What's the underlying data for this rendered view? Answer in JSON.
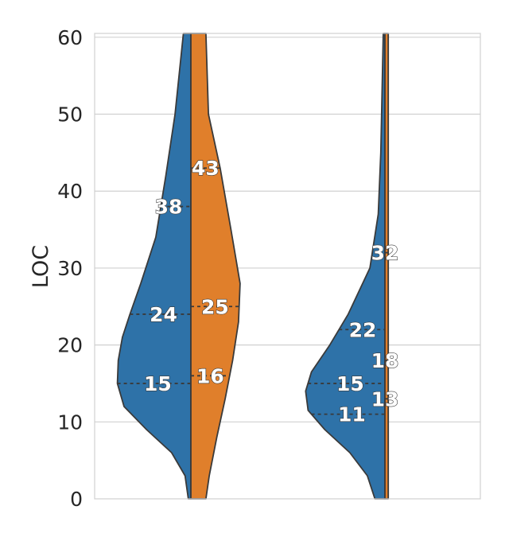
{
  "chart_data": {
    "type": "violin",
    "split": true,
    "title": "",
    "xlabel": "",
    "ylabel": "LOC",
    "ylim": [
      0,
      60.5
    ],
    "yticks": [
      0,
      10,
      20,
      30,
      40,
      50,
      60
    ],
    "grid": true,
    "colors": {
      "left": "#2e72a8",
      "right": "#e07f2b",
      "outline": "#3a3a3a",
      "grid": "#d0d0d0"
    },
    "groups": [
      {
        "left": {
          "quartiles": [
            15,
            24,
            38
          ],
          "labels": [
            "15",
            "24",
            "38"
          ],
          "shape": [
            [
              0,
              0.03
            ],
            [
              3,
              0.07
            ],
            [
              6,
              0.23
            ],
            [
              9,
              0.53
            ],
            [
              12,
              0.8
            ],
            [
              15,
              0.88
            ],
            [
              18,
              0.87
            ],
            [
              21,
              0.82
            ],
            [
              24,
              0.73
            ],
            [
              28,
              0.6
            ],
            [
              34,
              0.42
            ],
            [
              42,
              0.3
            ],
            [
              50,
              0.19
            ],
            [
              60.5,
              0.09
            ]
          ]
        },
        "right": {
          "quartiles": [
            16,
            25,
            43
          ],
          "labels": [
            "16",
            "25",
            "43"
          ],
          "shape": [
            [
              0,
              0.18
            ],
            [
              3,
              0.22
            ],
            [
              8,
              0.31
            ],
            [
              13,
              0.41
            ],
            [
              18,
              0.5
            ],
            [
              23,
              0.57
            ],
            [
              28,
              0.59
            ],
            [
              35,
              0.48
            ],
            [
              43,
              0.35
            ],
            [
              50,
              0.21
            ],
            [
              60.5,
              0.18
            ]
          ]
        }
      },
      {
        "left": {
          "quartiles": [
            11,
            15,
            22
          ],
          "labels": [
            "11",
            "15",
            "22"
          ],
          "shape": [
            [
              0,
              0.12
            ],
            [
              3,
              0.21
            ],
            [
              6,
              0.42
            ],
            [
              9,
              0.72
            ],
            [
              11.5,
              0.92
            ],
            [
              14,
              0.95
            ],
            [
              16.5,
              0.88
            ],
            [
              20,
              0.66
            ],
            [
              24,
              0.44
            ],
            [
              30,
              0.18
            ],
            [
              37,
              0.08
            ],
            [
              45,
              0.05
            ],
            [
              60.5,
              0.02
            ]
          ]
        },
        "right": {
          "quartiles": [
            13,
            18,
            32
          ],
          "labels": [
            "13",
            "18",
            "32"
          ],
          "shape": [
            [
              0,
              0.04
            ],
            [
              60.5,
              0.04
            ]
          ]
        }
      }
    ]
  }
}
